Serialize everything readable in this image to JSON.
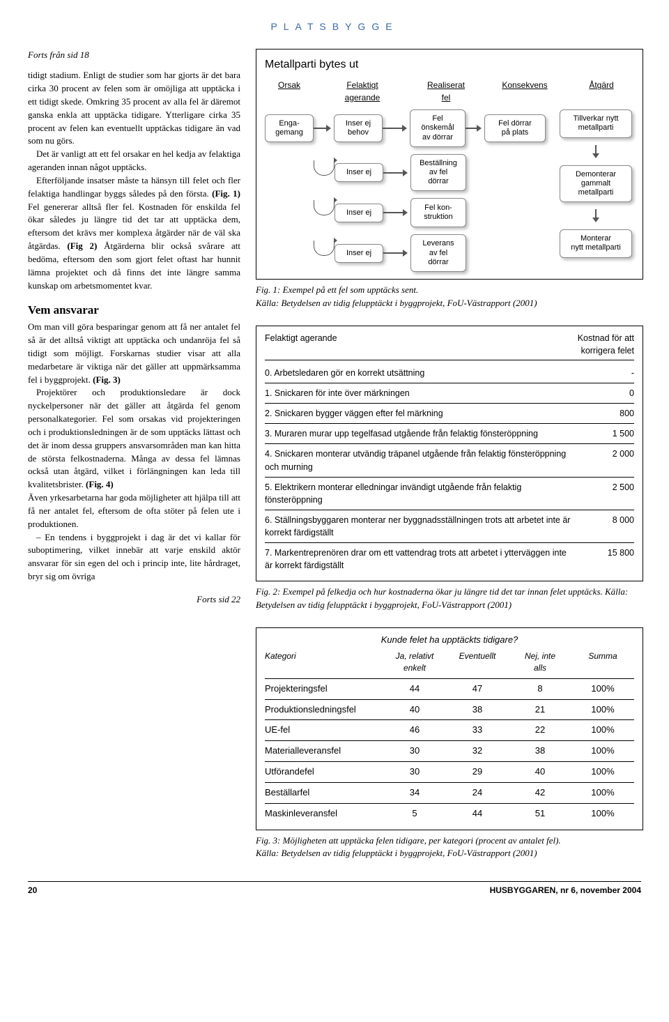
{
  "header": "PLATSBYGGE",
  "cont_from": "Forts från sid 18",
  "body_text": {
    "p1": "tidigt stadium. Enligt de studier som har gjorts är det bara cirka 30 procent av felen som är omöjliga att upptäcka i ett tidigt skede. Omkring 35 procent av alla fel är däremot ganska enkla att upptäcka tidigare. Ytterligare cirka 35 procent av felen kan eventuellt upptäckas tidigare än vad som nu görs.",
    "p2": "Det är vanligt att ett fel orsakar en hel kedja av felaktiga ageranden innan något upptäcks.",
    "p3_a": "Efterföljande insatser måste ta hänsyn till felet och fler felaktiga handlingar byggs således på den första. ",
    "p3_b": "(Fig. 1)",
    "p3_c": " Fel genererar alltså fler fel. Kostnaden för enskilda fel ökar således ju längre tid det tar att upptäcka dem, eftersom det krävs mer komplexa åtgärder när de väl ska åtgärdas. ",
    "p3_d": "(Fig 2)",
    "p3_e": " Åtgärderna blir också svårare att bedöma, eftersom den som gjort felet oftast har hunnit lämna projektet och då finns det inte längre samma kunskap om arbetsmomentet kvar.",
    "h2": "Vem ansvarar",
    "p4_a": "Om man vill göra besparingar genom att få ner antalet fel så är det alltså viktigt att upptäcka och undanröja fel så tidigt som möjligt. Forskarnas studier visar att alla medarbetare är viktiga när det gäller att uppmärksamma fel i byggprojekt. ",
    "p4_b": "(Fig. 3)",
    "p5_a": "Projektörer och produktionsledare är dock nyckelpersoner när det gäller att åtgärda fel genom personalkategorier. Fel som orsakas vid projekteringen och i produktionsledningen är de som upptäcks lättast och det är inom dessa gruppers ansvarsområden man kan hitta de största felkostnaderna. Många av dessa fel lämnas också utan åtgärd, vilket i förlängningen kan leda till kvalitetsbrister. ",
    "p5_b": "(Fig. 4)",
    "p6": "Även yrkesarbetarna har goda möjligheter att hjälpa till att få ner antalet fel, eftersom de ofta stöter på felen ute i produktionen.",
    "p7": "– En tendens i byggprojekt i dag är det vi kallar för suboptimering, vilket innebär att varje enskild aktör ansvarar för sin egen del och i princip inte, lite hårdraget, bryr sig om övriga"
  },
  "forts_sid": "Forts sid 22",
  "fig1": {
    "title": "Metallparti bytes ut",
    "heads": [
      "Orsak",
      "Felaktigt\nagerande",
      "Realiserat\nfel",
      "Konsekvens",
      "Åtgärd"
    ],
    "orsak": "Enga-\ngemang",
    "ag": [
      "Inser ej\nbehov",
      "Inser ej",
      "Inser ej",
      "Inser ej"
    ],
    "fel": [
      "Fel\nönskemål\nav dörrar",
      "Beställning\nav fel\ndörrar",
      "Fel kon-\nstruktion",
      "Leverans\nav fel\ndörrar"
    ],
    "kons": "Fel dörrar\npå plats",
    "atg": [
      "Tillverkar nytt\nmetallparti",
      "Demonterar\ngammalt metallparti",
      "Monterar\nnytt metallparti"
    ]
  },
  "fig1_caption_a": "Fig. 1:  Exempel på ett fel som upptäcks sent.",
  "fig1_caption_b": "Källa: Betydelsen av tidig felupptäckt i byggprojekt, FoU-Västrapport (2001)",
  "fig2": {
    "head_left": "Felaktigt agerande",
    "head_right": "Kostnad för att\nkorrigera felet",
    "rows": [
      {
        "d": "0. Arbetsledaren gör en korrekt utsättning",
        "c": "-"
      },
      {
        "d": "1. Snickaren för inte över märkningen",
        "c": "0"
      },
      {
        "d": "2. Snickaren bygger väggen efter fel märkning",
        "c": "800"
      },
      {
        "d": "3. Muraren murar upp tegelfasad utgående från felaktig fönsteröppning",
        "c": "1 500"
      },
      {
        "d": "4. Snickaren monterar utvändig träpanel utgående från felaktig fönsteröppning och murning",
        "c": "2 000"
      },
      {
        "d": "5. Elektrikern monterar elledningar invändigt utgående från felaktig fönsteröppning",
        "c": "2 500"
      },
      {
        "d": "6. Ställningsbyggaren monterar ner byggnadsställningen trots att arbetet inte är korrekt färdigställt",
        "c": "8 000"
      },
      {
        "d": "7. Markentreprenören drar om ett vattendrag trots att arbetet i ytterväggen inte är korrekt färdigställt",
        "c": "15 800"
      }
    ]
  },
  "fig2_caption": "Fig. 2: Exempel på felkedja och hur kostnaderna ökar ju längre tid det tar innan felet upptäcks. Källa: Betydelsen av tidig felupptäckt i byggprojekt, FoU-Västrapport (2001)",
  "fig3": {
    "q": "Kunde felet ha upptäckts tidigare?",
    "cols": [
      "Kategori",
      "Ja, relativt\nenkelt",
      "Eventuellt",
      "Nej, inte\nalls",
      "Summa"
    ],
    "rows": [
      [
        "Projekteringsfel",
        "44",
        "47",
        "8",
        "100%"
      ],
      [
        "Produktionsledningsfel",
        "40",
        "38",
        "21",
        "100%"
      ],
      [
        "UE-fel",
        "46",
        "33",
        "22",
        "100%"
      ],
      [
        "Materialleveransfel",
        "30",
        "32",
        "38",
        "100%"
      ],
      [
        "Utförandefel",
        "30",
        "29",
        "40",
        "100%"
      ],
      [
        "Beställarfel",
        "34",
        "24",
        "42",
        "100%"
      ],
      [
        "Maskinleveransfel",
        "5",
        "44",
        "51",
        "100%"
      ]
    ]
  },
  "fig3_caption_a": "Fig. 3: Möjligheten att upptäcka felen tidigare, per kategori (procent av antalet fel).",
  "fig3_caption_b": "Källa: Betydelsen av tidig felupptäckt i byggprojekt, FoU-Västrapport (2001)",
  "footer": {
    "page": "20",
    "pub": "HUSBYGGAREN, nr 6, november 2004"
  }
}
